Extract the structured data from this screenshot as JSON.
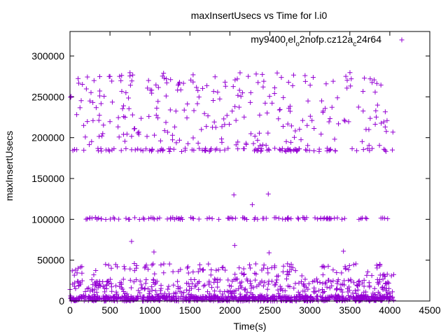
{
  "chart_data": {
    "type": "scatter",
    "title": "maxInsertUsecs vs Time for l.i0",
    "xlabel": "Time(s)",
    "ylabel": "maxInsertUsecs",
    "xlim": [
      0,
      4500
    ],
    "ylim": [
      0,
      330000
    ],
    "x_ticks": [
      0,
      500,
      1000,
      1500,
      2000,
      2500,
      3000,
      3500,
      4000,
      4500
    ],
    "x_tick_labels": [
      "0",
      "500",
      "1000",
      "1500",
      "2000",
      "2500",
      "3000",
      "3500",
      "4000",
      "4500"
    ],
    "y_ticks": [
      0,
      50000,
      100000,
      150000,
      200000,
      250000,
      300000
    ],
    "y_tick_labels": [
      "0",
      "50000",
      "100000",
      "150000",
      "200000",
      "250000",
      "300000"
    ],
    "grid": false,
    "legend_position": "top-right",
    "series": [
      {
        "name": "my9400",
        "name_sub": "r",
        "name_mid": "el",
        "name_sub2": "o",
        "name_tail": "2nofp.cz12a",
        "name_sub3": "c",
        "name_end": "24r64",
        "color": "#9400d3",
        "marker": "+",
        "x_range": [
          0,
          4050
        ],
        "bands": [
          {
            "y": 185000,
            "spread": 2000,
            "count": 110,
            "x_range": [
              0,
              4050
            ]
          },
          {
            "y": 101000,
            "spread": 1200,
            "count": 105,
            "x_range": [
              150,
              4000
            ]
          },
          {
            "y": 3000,
            "spread": 3000,
            "count": 700,
            "x_range": [
              0,
              4050
            ]
          },
          {
            "y": 15000,
            "spread": 12000,
            "count": 380,
            "x_range": [
              0,
              4050
            ]
          },
          {
            "y": 38000,
            "spread": 8000,
            "count": 120,
            "x_range": [
              0,
              4050
            ]
          }
        ],
        "scatter_high": {
          "y_range": [
            190000,
            280000
          ],
          "count": 260,
          "x_range": [
            0,
            4050
          ]
        },
        "points": [
          {
            "x": 2050,
            "y": 130000
          },
          {
            "x": 2480,
            "y": 131000
          },
          {
            "x": 2280,
            "y": 118000
          },
          {
            "x": 770,
            "y": 73000
          },
          {
            "x": 2060,
            "y": 68000
          },
          {
            "x": 1050,
            "y": 60000
          },
          {
            "x": 3420,
            "y": 61000
          },
          {
            "x": 2490,
            "y": 59000
          },
          {
            "x": 620,
            "y": 275000
          },
          {
            "x": 1540,
            "y": 277000
          },
          {
            "x": 2940,
            "y": 276000
          },
          {
            "x": 3450,
            "y": 275000
          }
        ]
      }
    ]
  }
}
